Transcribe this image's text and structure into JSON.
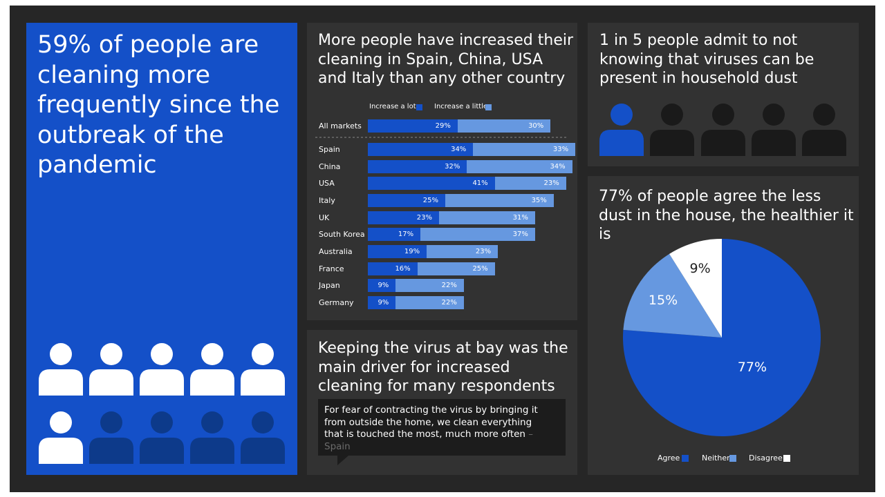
{
  "colors": {
    "blue": "#1450c8",
    "light_blue": "#6698e0",
    "dark_blue": "#0d3a8a",
    "panel": "#323232",
    "white": "#ffffff",
    "black_person": "#1a1a1a"
  },
  "headline": {
    "text": "59% of people are cleaning more frequently since the outbreak of the pandemic",
    "people_total": 10,
    "people_highlighted": 6
  },
  "bar_panel": {
    "title": "More people have increased their cleaning in Spain, China, USA and Italy than any other country"
  },
  "quote_panel": {
    "title": "Keeping the virus at bay was the main driver for increased cleaning for many respondents",
    "quote": "For fear of contracting the virus by bringing it from outside the home, we clean everything that is touched the most, much more often",
    "source": " – Spain"
  },
  "dust_panel": {
    "title": "1 in 5 people admit to not knowing that viruses can be present in household dust",
    "people_total": 5,
    "people_highlighted": 1
  },
  "pie_panel": {
    "title": "77% of people agree the less dust in the house, the healthier it is"
  },
  "chart_data": [
    {
      "type": "bar",
      "orientation": "horizontal",
      "stacked": true,
      "categories": [
        "All markets",
        "Spain",
        "China",
        "USA",
        "Italy",
        "UK",
        "South Korea",
        "Australia",
        "France",
        "Japan",
        "Germany"
      ],
      "series": [
        {
          "name": "Increase a lot",
          "values": [
            29,
            34,
            32,
            41,
            25,
            23,
            17,
            19,
            16,
            9,
            9
          ],
          "labels": [
            "29%",
            "34%",
            "32%",
            "41%",
            "25%",
            "23%",
            "17%",
            "19%",
            "16%",
            "9%",
            "9%"
          ],
          "color": "#1450c8"
        },
        {
          "name": "Increase a little",
          "values": [
            30,
            33,
            34,
            23,
            35,
            31,
            37,
            23,
            25,
            22,
            22
          ],
          "labels": [
            "30%",
            "33%",
            "34%",
            "23%",
            "35%",
            "31%",
            "37%",
            "23%",
            "25%",
            "22%",
            "22%"
          ],
          "color": "#6698e0"
        }
      ],
      "legend": "top"
    },
    {
      "type": "pie",
      "slices": [
        {
          "name": "Agree",
          "value": 77,
          "label": "77%",
          "color": "#1450c8"
        },
        {
          "name": "Neither",
          "value": 15,
          "label": "15%",
          "color": "#6698e0"
        },
        {
          "name": "Disagree",
          "value": 9,
          "label": "9%",
          "color": "#ffffff"
        }
      ],
      "legend": "bottom"
    }
  ]
}
